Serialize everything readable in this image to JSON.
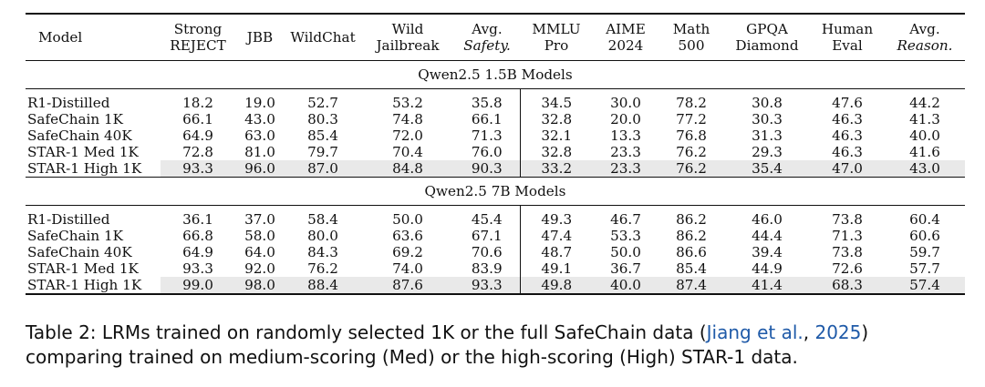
{
  "table": {
    "columns": [
      {
        "l1": "Model",
        "l2": ""
      },
      {
        "l1": "Strong",
        "l2": "REJECT"
      },
      {
        "l1": "JBB",
        "l2": ""
      },
      {
        "l1": "WildChat",
        "l2": ""
      },
      {
        "l1": "Wild",
        "l2": "Jailbreak"
      },
      {
        "l1": "Avg.",
        "l2": "Safety."
      },
      {
        "l1": "MMLU",
        "l2": "Pro"
      },
      {
        "l1": "AIME",
        "l2": "2024"
      },
      {
        "l1": "Math",
        "l2": "500"
      },
      {
        "l1": "GPQA",
        "l2": "Diamond"
      },
      {
        "l1": "Human",
        "l2": "Eval"
      },
      {
        "l1": "Avg.",
        "l2": "Reason."
      }
    ],
    "sections": [
      {
        "title": "Qwen2.5 1.5B Models",
        "rows": [
          [
            "R1-Distilled",
            "18.2",
            "19.0",
            "52.7",
            "53.2",
            "35.8",
            "34.5",
            "30.0",
            "78.2",
            "30.8",
            "47.6",
            "44.2"
          ],
          [
            "SafeChain 1K",
            "66.1",
            "43.0",
            "80.3",
            "74.8",
            "66.1",
            "32.8",
            "20.0",
            "77.2",
            "30.3",
            "46.3",
            "41.3"
          ],
          [
            "SafeChain 40K",
            "64.9",
            "63.0",
            "85.4",
            "72.0",
            "71.3",
            "32.1",
            "13.3",
            "76.8",
            "31.3",
            "46.3",
            "40.0"
          ],
          [
            "STAR-1 Med 1K",
            "72.8",
            "81.0",
            "79.7",
            "70.4",
            "76.0",
            "32.8",
            "23.3",
            "76.2",
            "29.3",
            "46.3",
            "41.6"
          ],
          [
            "STAR-1 High 1K",
            "93.3",
            "96.0",
            "87.0",
            "84.8",
            "90.3",
            "33.2",
            "23.3",
            "76.2",
            "35.4",
            "47.0",
            "43.0"
          ]
        ]
      },
      {
        "title": "Qwen2.5 7B Models",
        "rows": [
          [
            "R1-Distilled",
            "36.1",
            "37.0",
            "58.4",
            "50.0",
            "45.4",
            "49.3",
            "46.7",
            "86.2",
            "46.0",
            "73.8",
            "60.4"
          ],
          [
            "SafeChain 1K",
            "66.8",
            "58.0",
            "80.0",
            "63.6",
            "67.1",
            "47.4",
            "53.3",
            "86.2",
            "44.4",
            "71.3",
            "60.6"
          ],
          [
            "SafeChain 40K",
            "64.9",
            "64.0",
            "84.3",
            "69.2",
            "70.6",
            "48.7",
            "50.0",
            "86.6",
            "39.4",
            "73.8",
            "59.7"
          ],
          [
            "STAR-1 Med 1K",
            "93.3",
            "92.0",
            "76.2",
            "74.0",
            "83.9",
            "49.1",
            "36.7",
            "85.4",
            "44.9",
            "72.6",
            "57.7"
          ],
          [
            "STAR-1 High 1K",
            "99.0",
            "98.0",
            "88.4",
            "87.6",
            "93.3",
            "49.8",
            "40.0",
            "87.4",
            "41.4",
            "68.3",
            "57.4"
          ]
        ]
      }
    ]
  },
  "caption": {
    "part1": "Table 2: LRMs trained on randomly selected 1K or the full SafeChain data (",
    "cite_author": "Jiang et al.",
    "cite_sep": ", ",
    "cite_year": "2025",
    "part2": ")",
    "line2": "comparing trained on medium-scoring (Med) or the high-scoring (High) STAR-1 data."
  }
}
